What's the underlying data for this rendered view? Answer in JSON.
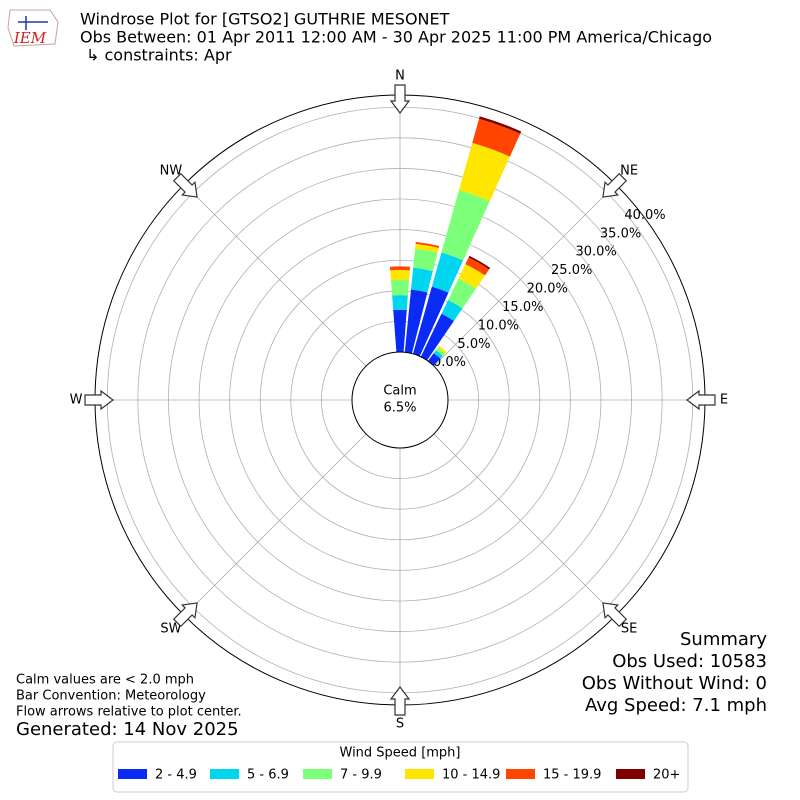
{
  "chart_data": {
    "type": "windrose",
    "logo": "IEM",
    "title": "Windrose Plot for [GTSO2] GUTHRIE MESONET",
    "subtitle": "Obs Between: 01 Apr 2011 12:00 AM - 30 Apr 2025 11:00 PM America/Chicago",
    "subtitle2": "↳ constraints: Apr",
    "calm": {
      "label": "Calm",
      "value": 6.5,
      "value_label": "6.5%"
    },
    "compass": [
      {
        "label": "N",
        "angle": 0
      },
      {
        "label": "NE",
        "angle": 45
      },
      {
        "label": "E",
        "angle": 90
      },
      {
        "label": "SE",
        "angle": 135
      },
      {
        "label": "S",
        "angle": 180
      },
      {
        "label": "SW",
        "angle": 225
      },
      {
        "label": "W",
        "angle": 270
      },
      {
        "label": "NW",
        "angle": 315
      }
    ],
    "directions": [
      0,
      10,
      20,
      30,
      40
    ],
    "ylim": [
      0,
      42
    ],
    "yticks": [
      {
        "value": 0,
        "label": "0.0%"
      },
      {
        "value": 5,
        "label": "5.0%"
      },
      {
        "value": 10,
        "label": "10.0%"
      },
      {
        "value": 15,
        "label": "15.0%"
      },
      {
        "value": 20,
        "label": "20.0%"
      },
      {
        "value": 25,
        "label": "25.0%"
      },
      {
        "value": 30,
        "label": "30.0%"
      },
      {
        "value": 35,
        "label": "35.0%"
      },
      {
        "value": 40,
        "label": "40.0%"
      }
    ],
    "grid": true,
    "legend_title": "Wind Speed [mph]",
    "series": [
      {
        "name": "2 - 4.9",
        "color": "#0a2bf5",
        "values": [
          6.9,
          10.3,
          11.4,
          7.8,
          1.6
        ]
      },
      {
        "name": "5 - 6.9",
        "color": "#00d6f0",
        "values": [
          2.4,
          3.6,
          5.8,
          2.5,
          0.6
        ]
      },
      {
        "name": "7 - 9.9",
        "color": "#7cff79",
        "values": [
          2.5,
          3.1,
          10.6,
          3.9,
          0.5
        ]
      },
      {
        "name": "10 - 14.9",
        "color": "#ffe600",
        "values": [
          1.6,
          0.8,
          8.0,
          2.6,
          0.4
        ]
      },
      {
        "name": "15 - 19.9",
        "color": "#ff4500",
        "values": [
          0.6,
          0.3,
          4.1,
          1.2,
          0
        ]
      },
      {
        "name": "20+",
        "color": "#800000",
        "values": [
          0,
          0,
          0.4,
          0.3,
          0
        ]
      }
    ],
    "summary": [
      "Summary",
      "Obs Used: 10583",
      "Obs Without Wind: 0",
      "Avg Speed: 7.1 mph"
    ],
    "notes": [
      "Calm values are < 2.0 mph",
      "Bar Convention: Meteorology",
      "Flow arrows relative to plot center."
    ],
    "generated": "Generated: 14 Nov 2025"
  }
}
